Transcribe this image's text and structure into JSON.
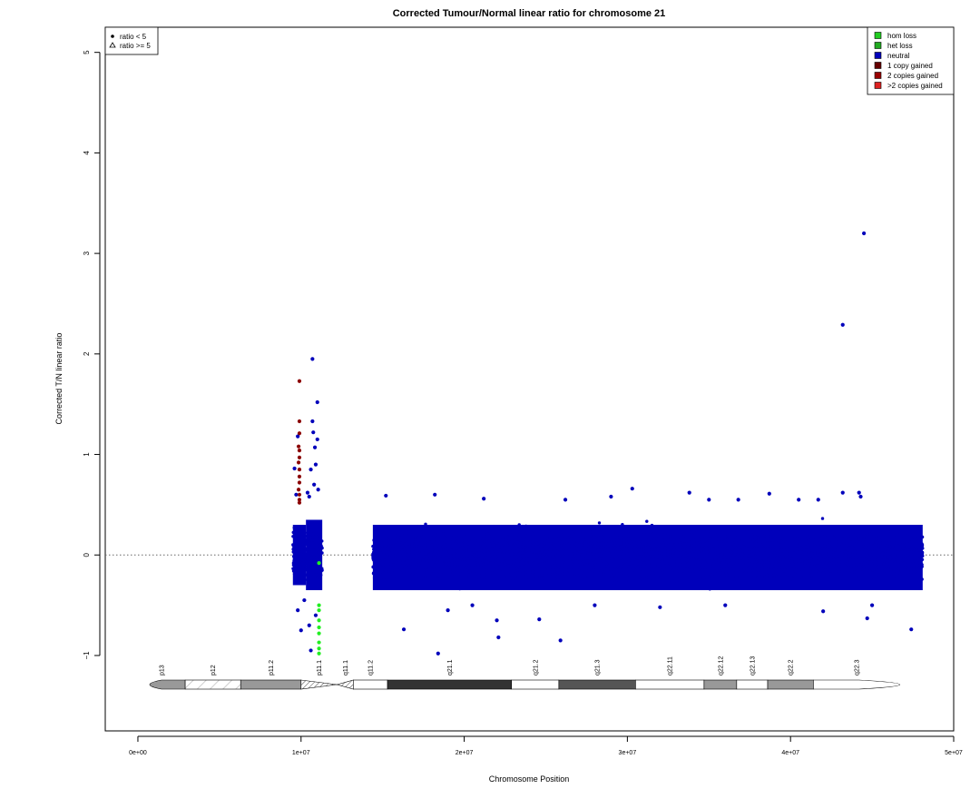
{
  "chart_data": {
    "type": "scatter",
    "title": "Corrected Tumour/Normal linear ratio for chromosome  21",
    "xlabel": "Chromosome Position",
    "ylabel": "Corrected T/N linear ratio",
    "xlim": [
      -2000000,
      50000000
    ],
    "ylim": [
      -1.75,
      5.25
    ],
    "x_ticks": [
      0,
      10000000,
      20000000,
      30000000,
      40000000,
      50000000
    ],
    "x_tick_labels": [
      "0e+00",
      "1e+07",
      "2e+07",
      "3e+07",
      "4e+07",
      "5e+07"
    ],
    "y_ticks": [
      -1,
      0,
      1,
      2,
      3,
      4,
      5
    ],
    "y_tick_labels": [
      "−1",
      "0",
      "1",
      "2",
      "3",
      "4",
      "5"
    ],
    "reference_line": 0,
    "symbol_legend": {
      "placement": "top-left",
      "entries": [
        {
          "label": "ratio < 5",
          "symbol": "dot"
        },
        {
          "label": "ratio >= 5",
          "symbol": "triangle"
        }
      ]
    },
    "legend": {
      "placement": "top-right",
      "entries": [
        {
          "label": "hom loss",
          "color": "#22cc22"
        },
        {
          "label": "het loss",
          "color": "#22aa22"
        },
        {
          "label": "neutral",
          "color": "#0000bb"
        },
        {
          "label": "1 copy gained",
          "color": "#660000"
        },
        {
          "label": "2 copies gained",
          "color": "#990000"
        },
        {
          "label": ">2 copies gained",
          "color": "#dd2222"
        }
      ]
    },
    "colors": {
      "neutral": "#0000bb",
      "gain": "#8b0000",
      "loss": "#22ee22",
      "reference_line": "#666666"
    },
    "dense_regions": [
      {
        "x_range": [
          9500000,
          10300000
        ],
        "y_band": [
          -0.3,
          0.3
        ],
        "class": "neutral"
      },
      {
        "x_range": [
          10300000,
          11300000
        ],
        "y_band": [
          -0.35,
          0.35
        ],
        "class": "neutral"
      },
      {
        "x_range": [
          14400000,
          48100000
        ],
        "y_band": [
          -0.35,
          0.3
        ],
        "class": "neutral"
      }
    ],
    "gain_points": [
      {
        "x": 9900000,
        "y": 1.73
      },
      {
        "x": 9900000,
        "y": 1.33
      },
      {
        "x": 9900000,
        "y": 1.21
      },
      {
        "x": 9850000,
        "y": 1.08
      },
      {
        "x": 9900000,
        "y": 1.04
      },
      {
        "x": 9900000,
        "y": 0.97
      },
      {
        "x": 9850000,
        "y": 0.92
      },
      {
        "x": 9900000,
        "y": 0.85
      },
      {
        "x": 9900000,
        "y": 0.78
      },
      {
        "x": 9900000,
        "y": 0.72
      },
      {
        "x": 9850000,
        "y": 0.65
      },
      {
        "x": 9900000,
        "y": 0.6
      },
      {
        "x": 9900000,
        "y": 0.55
      },
      {
        "x": 9900000,
        "y": 0.52
      }
    ],
    "loss_points": [
      {
        "x": 11100000,
        "y": -0.08
      },
      {
        "x": 11100000,
        "y": -0.5
      },
      {
        "x": 11100000,
        "y": -0.55
      },
      {
        "x": 11100000,
        "y": -0.65
      },
      {
        "x": 11100000,
        "y": -0.72
      },
      {
        "x": 11100000,
        "y": -0.78
      },
      {
        "x": 11100000,
        "y": -0.87
      },
      {
        "x": 11100000,
        "y": -0.93
      },
      {
        "x": 11100000,
        "y": -0.98
      }
    ],
    "neutral_outliers": [
      {
        "x": 10700000,
        "y": 1.95
      },
      {
        "x": 11000000,
        "y": 1.52
      },
      {
        "x": 10700000,
        "y": 1.33
      },
      {
        "x": 9800000,
        "y": 1.18
      },
      {
        "x": 10750000,
        "y": 1.22
      },
      {
        "x": 10850000,
        "y": 1.07
      },
      {
        "x": 11000000,
        "y": 1.15
      },
      {
        "x": 9600000,
        "y": 0.86
      },
      {
        "x": 10600000,
        "y": 0.85
      },
      {
        "x": 10900000,
        "y": 0.9
      },
      {
        "x": 10800000,
        "y": 0.7
      },
      {
        "x": 11050000,
        "y": 0.65
      },
      {
        "x": 9700000,
        "y": 0.6
      },
      {
        "x": 10500000,
        "y": 0.58
      },
      {
        "x": 10400000,
        "y": 0.62
      },
      {
        "x": 9800000,
        "y": -0.55
      },
      {
        "x": 10500000,
        "y": -0.7
      },
      {
        "x": 10000000,
        "y": -0.75
      },
      {
        "x": 10600000,
        "y": -0.95
      },
      {
        "x": 10900000,
        "y": -0.6
      },
      {
        "x": 10200000,
        "y": -0.45
      },
      {
        "x": 43200000,
        "y": 2.29
      },
      {
        "x": 44500000,
        "y": 3.2
      },
      {
        "x": 30300000,
        "y": 0.66
      },
      {
        "x": 33800000,
        "y": 0.62
      },
      {
        "x": 38700000,
        "y": 0.61
      },
      {
        "x": 44200000,
        "y": 0.62
      },
      {
        "x": 43200000,
        "y": 0.62
      },
      {
        "x": 44300000,
        "y": 0.58
      },
      {
        "x": 35000000,
        "y": 0.55
      },
      {
        "x": 36800000,
        "y": 0.55
      },
      {
        "x": 15200000,
        "y": 0.59
      },
      {
        "x": 18200000,
        "y": 0.6
      },
      {
        "x": 21200000,
        "y": 0.56
      },
      {
        "x": 29000000,
        "y": 0.58
      },
      {
        "x": 41700000,
        "y": 0.55
      },
      {
        "x": 26200000,
        "y": 0.55
      },
      {
        "x": 40500000,
        "y": 0.55
      },
      {
        "x": 18400000,
        "y": -0.98
      },
      {
        "x": 25900000,
        "y": -0.85
      },
      {
        "x": 22100000,
        "y": -0.82
      },
      {
        "x": 16300000,
        "y": -0.74
      },
      {
        "x": 47400000,
        "y": -0.74
      },
      {
        "x": 44700000,
        "y": -0.63
      },
      {
        "x": 45000000,
        "y": -0.5
      },
      {
        "x": 42000000,
        "y": -0.56
      },
      {
        "x": 22000000,
        "y": -0.65
      },
      {
        "x": 24600000,
        "y": -0.64
      },
      {
        "x": 28000000,
        "y": -0.5
      },
      {
        "x": 32000000,
        "y": -0.52
      },
      {
        "x": 36000000,
        "y": -0.5
      },
      {
        "x": 19000000,
        "y": -0.55
      },
      {
        "x": 20500000,
        "y": -0.5
      }
    ],
    "ideogram": {
      "bands": [
        {
          "name": "p13",
          "start": 0,
          "end": 2900000,
          "stain": "gpos50"
        },
        {
          "name": "p12",
          "start": 2900000,
          "end": 6300000,
          "stain": "stalk"
        },
        {
          "name": "p11.2",
          "start": 6300000,
          "end": 10000000,
          "stain": "gpos50"
        },
        {
          "name": "p11.1",
          "start": 10000000,
          "end": 12200000,
          "stain": "acen"
        },
        {
          "name": "q11.1",
          "start": 12200000,
          "end": 13200000,
          "stain": "acen"
        },
        {
          "name": "q11.2",
          "start": 13200000,
          "end": 15300000,
          "stain": "gneg"
        },
        {
          "name": "q21.1",
          "start": 15300000,
          "end": 22900000,
          "stain": "gpos100"
        },
        {
          "name": "q21.2",
          "start": 22900000,
          "end": 25800000,
          "stain": "gneg"
        },
        {
          "name": "q21.3",
          "start": 25800000,
          "end": 30500000,
          "stain": "gpos75"
        },
        {
          "name": "q22.11",
          "start": 30500000,
          "end": 34700000,
          "stain": "gneg"
        },
        {
          "name": "q22.12",
          "start": 34700000,
          "end": 36700000,
          "stain": "gpos50"
        },
        {
          "name": "q22.13",
          "start": 36700000,
          "end": 38600000,
          "stain": "gneg"
        },
        {
          "name": "q22.2",
          "start": 38600000,
          "end": 41400000,
          "stain": "gpos50"
        },
        {
          "name": "q22.3",
          "start": 41400000,
          "end": 46700000,
          "stain": "gneg"
        }
      ]
    }
  }
}
